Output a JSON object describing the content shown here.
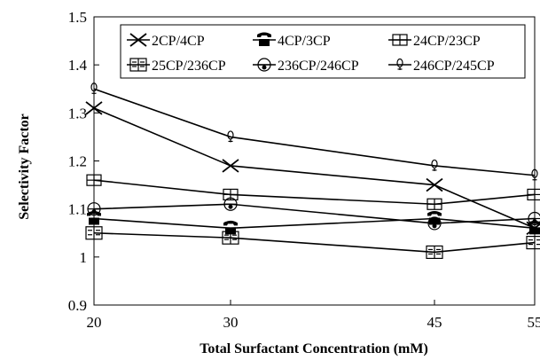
{
  "chart_data": {
    "type": "line",
    "title": "",
    "xlabel": "Total Surfactant Concentration (mM)",
    "ylabel": "Selectivity Factor",
    "x": [
      20,
      30,
      45,
      55
    ],
    "x_ticks": [
      "20",
      "30",
      "45",
      "55"
    ],
    "y_ticks": [
      "0.9",
      "1",
      "1.1",
      "1.2",
      "1.3",
      "1.4",
      "1.5"
    ],
    "ylim": [
      0.9,
      1.5
    ],
    "grid": false,
    "legend_position": "top-right",
    "series": [
      {
        "name": "2CP/4CP",
        "marker": "x",
        "values": [
          1.31,
          1.19,
          1.15,
          1.06
        ]
      },
      {
        "name": "4CP/3CP",
        "marker": "phone",
        "values": [
          1.08,
          1.06,
          1.08,
          1.06
        ]
      },
      {
        "name": "24CP/23CP",
        "marker": "box-cross",
        "values": [
          1.16,
          1.13,
          1.11,
          1.13
        ]
      },
      {
        "name": "25CP/236CP",
        "marker": "book",
        "values": [
          1.05,
          1.04,
          1.01,
          1.03
        ]
      },
      {
        "name": "236CP/246CP",
        "marker": "circle-bar",
        "values": [
          1.1,
          1.11,
          1.07,
          1.08
        ]
      },
      {
        "name": "246CP/245CP",
        "marker": "bulb",
        "values": [
          1.35,
          1.25,
          1.19,
          1.17
        ]
      }
    ]
  }
}
